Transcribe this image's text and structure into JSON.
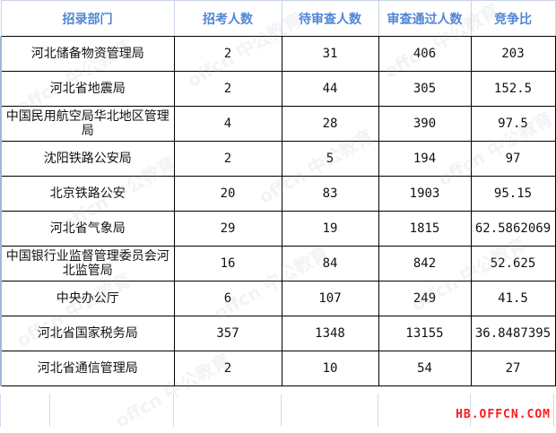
{
  "table": {
    "headers": [
      "招录部门",
      "招考人数",
      "待审查人数",
      "审查通过人数",
      "竞争比"
    ],
    "rows": [
      [
        "河北储备物资管理局",
        "2",
        "31",
        "406",
        "203"
      ],
      [
        "河北省地震局",
        "2",
        "44",
        "305",
        "152.5"
      ],
      [
        "中国民用航空局华北地区管理局",
        "4",
        "28",
        "390",
        "97.5"
      ],
      [
        "沈阳铁路公安局",
        "2",
        "5",
        "194",
        "97"
      ],
      [
        "北京铁路公安",
        "20",
        "83",
        "1903",
        "95.15"
      ],
      [
        "河北省气象局",
        "29",
        "19",
        "1815",
        "62.5862069"
      ],
      [
        "中国银行业监督管理委员会河北监管局",
        "16",
        "84",
        "842",
        "52.625"
      ],
      [
        "中央办公厅",
        "6",
        "107",
        "249",
        "41.5"
      ],
      [
        "河北省国家税务局",
        "357",
        "1348",
        "13155",
        "36.8487395"
      ],
      [
        "河北省通信管理局",
        "2",
        "10",
        "54",
        "27"
      ]
    ]
  },
  "watermark": "offcn 中公教育",
  "footer": "HB.OFFCN.COM",
  "colors": {
    "header_text": "#4f86d6",
    "footer_text": "#ff1a1a"
  }
}
